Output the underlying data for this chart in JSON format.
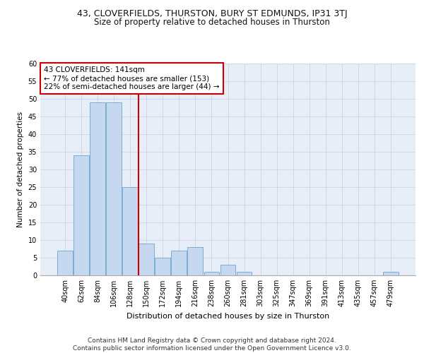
{
  "title1": "43, CLOVERFIELDS, THURSTON, BURY ST EDMUNDS, IP31 3TJ",
  "title2": "Size of property relative to detached houses in Thurston",
  "xlabel": "Distribution of detached houses by size in Thurston",
  "ylabel": "Number of detached properties",
  "categories": [
    "40sqm",
    "62sqm",
    "84sqm",
    "106sqm",
    "128sqm",
    "150sqm",
    "172sqm",
    "194sqm",
    "216sqm",
    "238sqm",
    "260sqm",
    "281sqm",
    "303sqm",
    "325sqm",
    "347sqm",
    "369sqm",
    "391sqm",
    "413sqm",
    "435sqm",
    "457sqm",
    "479sqm"
  ],
  "values": [
    7,
    34,
    49,
    49,
    25,
    9,
    5,
    7,
    8,
    1,
    3,
    1,
    0,
    0,
    0,
    0,
    0,
    0,
    0,
    0,
    1
  ],
  "bar_color": "#c5d8f0",
  "bar_edge_color": "#7aadd4",
  "ref_line_color": "#cc0000",
  "annotation_text": "43 CLOVERFIELDS: 141sqm\n← 77% of detached houses are smaller (153)\n22% of semi-detached houses are larger (44) →",
  "annotation_box_color": "#ffffff",
  "annotation_box_edge_color": "#cc0000",
  "ylim": [
    0,
    60
  ],
  "yticks": [
    0,
    5,
    10,
    15,
    20,
    25,
    30,
    35,
    40,
    45,
    50,
    55,
    60
  ],
  "grid_color": "#d0d8e8",
  "background_color": "#e8eef8",
  "footer_text": "Contains HM Land Registry data © Crown copyright and database right 2024.\nContains public sector information licensed under the Open Government Licence v3.0.",
  "title1_fontsize": 9,
  "title2_fontsize": 8.5,
  "xlabel_fontsize": 8,
  "ylabel_fontsize": 7.5,
  "tick_fontsize": 7,
  "annotation_fontsize": 7.5,
  "footer_fontsize": 6.5
}
